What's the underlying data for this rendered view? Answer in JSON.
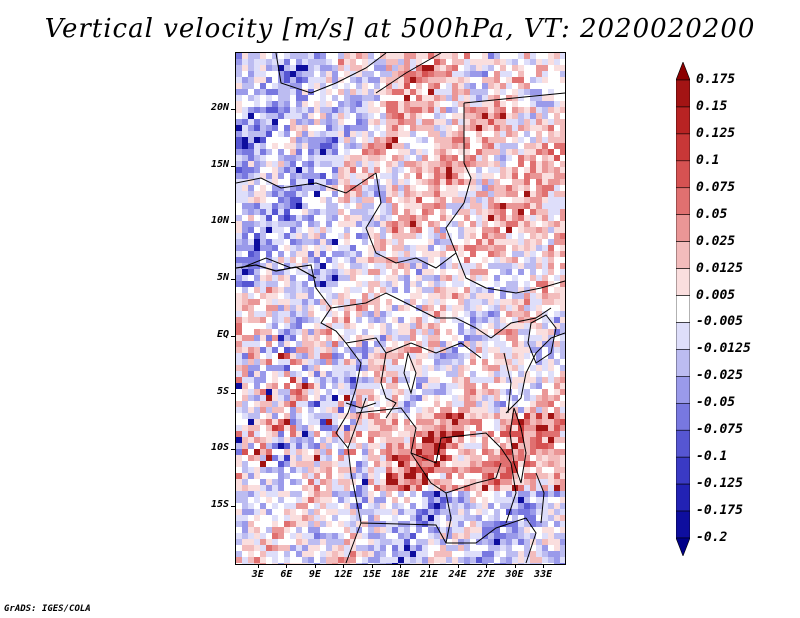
{
  "title": "Vertical velocity [m/s] at 500hPa, VT: 2020020200",
  "credit": "GrADS: IGES/COLA",
  "axes": {
    "lat_ticks": [
      {
        "label": "20N",
        "value": 20
      },
      {
        "label": "15N",
        "value": 15
      },
      {
        "label": "10N",
        "value": 10
      },
      {
        "label": "5N",
        "value": 5
      },
      {
        "label": "EQ",
        "value": 0
      },
      {
        "label": "5S",
        "value": -5
      },
      {
        "label": "10S",
        "value": -10
      },
      {
        "label": "15S",
        "value": -15
      }
    ],
    "lon_ticks": [
      {
        "label": "3E",
        "value": 3
      },
      {
        "label": "6E",
        "value": 6
      },
      {
        "label": "9E",
        "value": 9
      },
      {
        "label": "12E",
        "value": 12
      },
      {
        "label": "15E",
        "value": 15
      },
      {
        "label": "18E",
        "value": 18
      },
      {
        "label": "21E",
        "value": 21
      },
      {
        "label": "24E",
        "value": 24
      },
      {
        "label": "27E",
        "value": 27
      },
      {
        "label": "30E",
        "value": 30
      },
      {
        "label": "33E",
        "value": 33
      }
    ],
    "lon_range": [
      0.6,
      35.2
    ],
    "lat_range": [
      -20,
      25
    ]
  },
  "colorbar": {
    "labels": [
      "0.175",
      "0.15",
      "0.125",
      "0.1",
      "0.075",
      "0.05",
      "0.025",
      "0.0125",
      "0.005",
      "-0.005",
      "-0.0125",
      "-0.025",
      "-0.05",
      "-0.075",
      "-0.1",
      "-0.125",
      "-0.175",
      "-0.2"
    ],
    "colors": [
      "#8b0000",
      "#a31414",
      "#b82323",
      "#c83737",
      "#d65252",
      "#e07070",
      "#ea9696",
      "#f3bcbc",
      "#fadede",
      "#ffffff",
      "#dedefa",
      "#bcbcf1",
      "#9a9aea",
      "#7878e0",
      "#5656d2",
      "#3a3ac4",
      "#2222b4",
      "#0e0e9e",
      "#000088"
    ]
  }
}
